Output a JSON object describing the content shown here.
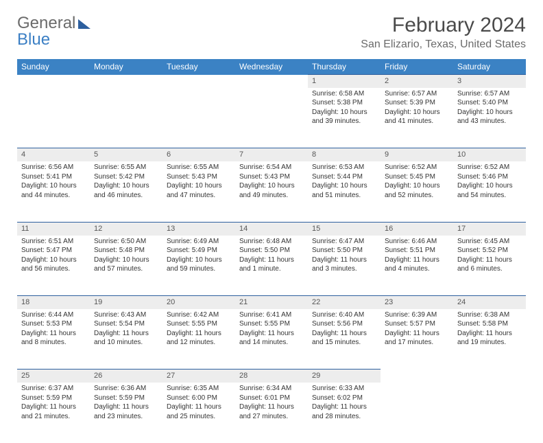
{
  "logo": {
    "part1": "General",
    "part2": "Blue"
  },
  "title": "February 2024",
  "location": "San Elizario, Texas, United States",
  "day_headers": [
    "Sunday",
    "Monday",
    "Tuesday",
    "Wednesday",
    "Thursday",
    "Friday",
    "Saturday"
  ],
  "colors": {
    "header_bg": "#3b82c4",
    "header_text": "#ffffff",
    "daynum_bg": "#ededed",
    "daynum_border": "#2d5f9e",
    "body_text": "#333333",
    "title_text": "#4a4a4a",
    "sub_text": "#6b6b6b"
  },
  "weeks": [
    [
      null,
      null,
      null,
      null,
      {
        "d": "1",
        "sr": "6:58 AM",
        "ss": "5:38 PM",
        "dl": "10 hours and 39 minutes."
      },
      {
        "d": "2",
        "sr": "6:57 AM",
        "ss": "5:39 PM",
        "dl": "10 hours and 41 minutes."
      },
      {
        "d": "3",
        "sr": "6:57 AM",
        "ss": "5:40 PM",
        "dl": "10 hours and 43 minutes."
      }
    ],
    [
      {
        "d": "4",
        "sr": "6:56 AM",
        "ss": "5:41 PM",
        "dl": "10 hours and 44 minutes."
      },
      {
        "d": "5",
        "sr": "6:55 AM",
        "ss": "5:42 PM",
        "dl": "10 hours and 46 minutes."
      },
      {
        "d": "6",
        "sr": "6:55 AM",
        "ss": "5:43 PM",
        "dl": "10 hours and 47 minutes."
      },
      {
        "d": "7",
        "sr": "6:54 AM",
        "ss": "5:43 PM",
        "dl": "10 hours and 49 minutes."
      },
      {
        "d": "8",
        "sr": "6:53 AM",
        "ss": "5:44 PM",
        "dl": "10 hours and 51 minutes."
      },
      {
        "d": "9",
        "sr": "6:52 AM",
        "ss": "5:45 PM",
        "dl": "10 hours and 52 minutes."
      },
      {
        "d": "10",
        "sr": "6:52 AM",
        "ss": "5:46 PM",
        "dl": "10 hours and 54 minutes."
      }
    ],
    [
      {
        "d": "11",
        "sr": "6:51 AM",
        "ss": "5:47 PM",
        "dl": "10 hours and 56 minutes."
      },
      {
        "d": "12",
        "sr": "6:50 AM",
        "ss": "5:48 PM",
        "dl": "10 hours and 57 minutes."
      },
      {
        "d": "13",
        "sr": "6:49 AM",
        "ss": "5:49 PM",
        "dl": "10 hours and 59 minutes."
      },
      {
        "d": "14",
        "sr": "6:48 AM",
        "ss": "5:50 PM",
        "dl": "11 hours and 1 minute."
      },
      {
        "d": "15",
        "sr": "6:47 AM",
        "ss": "5:50 PM",
        "dl": "11 hours and 3 minutes."
      },
      {
        "d": "16",
        "sr": "6:46 AM",
        "ss": "5:51 PM",
        "dl": "11 hours and 4 minutes."
      },
      {
        "d": "17",
        "sr": "6:45 AM",
        "ss": "5:52 PM",
        "dl": "11 hours and 6 minutes."
      }
    ],
    [
      {
        "d": "18",
        "sr": "6:44 AM",
        "ss": "5:53 PM",
        "dl": "11 hours and 8 minutes."
      },
      {
        "d": "19",
        "sr": "6:43 AM",
        "ss": "5:54 PM",
        "dl": "11 hours and 10 minutes."
      },
      {
        "d": "20",
        "sr": "6:42 AM",
        "ss": "5:55 PM",
        "dl": "11 hours and 12 minutes."
      },
      {
        "d": "21",
        "sr": "6:41 AM",
        "ss": "5:55 PM",
        "dl": "11 hours and 14 minutes."
      },
      {
        "d": "22",
        "sr": "6:40 AM",
        "ss": "5:56 PM",
        "dl": "11 hours and 15 minutes."
      },
      {
        "d": "23",
        "sr": "6:39 AM",
        "ss": "5:57 PM",
        "dl": "11 hours and 17 minutes."
      },
      {
        "d": "24",
        "sr": "6:38 AM",
        "ss": "5:58 PM",
        "dl": "11 hours and 19 minutes."
      }
    ],
    [
      {
        "d": "25",
        "sr": "6:37 AM",
        "ss": "5:59 PM",
        "dl": "11 hours and 21 minutes."
      },
      {
        "d": "26",
        "sr": "6:36 AM",
        "ss": "5:59 PM",
        "dl": "11 hours and 23 minutes."
      },
      {
        "d": "27",
        "sr": "6:35 AM",
        "ss": "6:00 PM",
        "dl": "11 hours and 25 minutes."
      },
      {
        "d": "28",
        "sr": "6:34 AM",
        "ss": "6:01 PM",
        "dl": "11 hours and 27 minutes."
      },
      {
        "d": "29",
        "sr": "6:33 AM",
        "ss": "6:02 PM",
        "dl": "11 hours and 28 minutes."
      },
      null,
      null
    ]
  ],
  "labels": {
    "sunrise": "Sunrise: ",
    "sunset": "Sunset: ",
    "daylight": "Daylight: "
  }
}
